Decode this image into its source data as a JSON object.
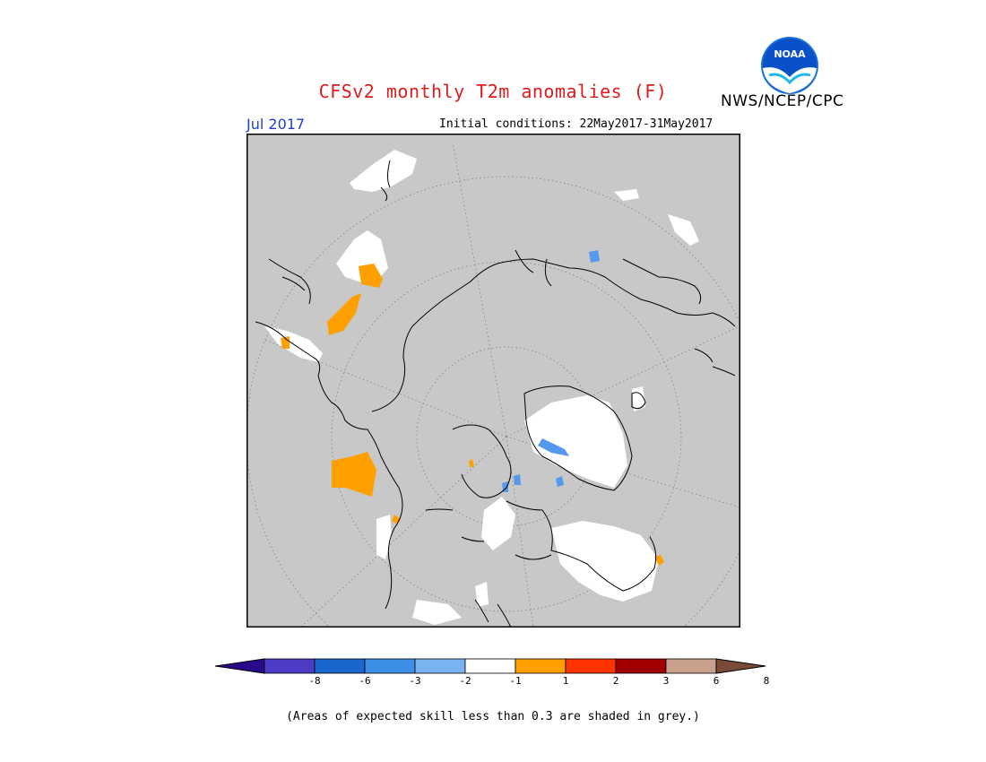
{
  "title": "CFSv2 monthly T2m anomalies (F)",
  "agency": "NWS/NCEP/CPC",
  "period": "Jul 2017",
  "initial_conditions": "Initial conditions: 22May2017-31May2017",
  "footnote": "(Areas of expected skill less than 0.3 are shaded in grey.)",
  "logo": {
    "icon": "noaa-logo",
    "text": "NOAA"
  },
  "colorbar": {
    "ticks": [
      "-8",
      "-6",
      "-3",
      "-2",
      "-1",
      "1",
      "2",
      "3",
      "6",
      "8"
    ],
    "colors": [
      "#2a0a8a",
      "#4c3bc4",
      "#1a66cc",
      "#3d8fe6",
      "#7ab4f0",
      "#ffffff",
      "#ffa000",
      "#ff3300",
      "#a00000",
      "#c8a08c",
      "#7a4a38"
    ]
  },
  "map": {
    "background": "#c8c8c8",
    "land_skill_color": "#ffffff",
    "anomaly_color": "#ffa000",
    "cold_anomaly_color": "#5599ee",
    "projection": "north-polar-stereographic"
  }
}
